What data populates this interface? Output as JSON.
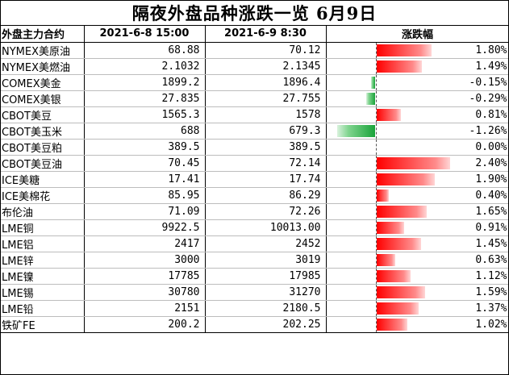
{
  "title": "隔夜外盘品种涨跌一览 6月9日",
  "headers": [
    "外盘主力合约",
    "2021-6-8 15:00",
    "2021-6-9 8:30",
    "涨跌幅"
  ],
  "colors": {
    "up": "#ff0000",
    "down": "#1aa33a"
  },
  "rows": [
    {
      "name": "NYMEX美原油",
      "prev": "68.88",
      "curr": "70.12",
      "change_text": "1.80%",
      "change": 1.8
    },
    {
      "name": "NYMEX美燃油",
      "prev": "2.1032",
      "curr": "2.1345",
      "change_text": "1.49%",
      "change": 1.49
    },
    {
      "name": "COMEX美金",
      "prev": "1899.2",
      "curr": "1896.4",
      "change_text": "-0.15%",
      "change": -0.15
    },
    {
      "name": "COMEX美银",
      "prev": "27.835",
      "curr": "27.755",
      "change_text": "-0.29%",
      "change": -0.29
    },
    {
      "name": "CBOT美豆",
      "prev": "1565.3",
      "curr": "1578",
      "change_text": "0.81%",
      "change": 0.81
    },
    {
      "name": "CBOT美玉米",
      "prev": "688",
      "curr": "679.3",
      "change_text": "-1.26%",
      "change": -1.26
    },
    {
      "name": "CBOT美豆粕",
      "prev": "389.5",
      "curr": "389.5",
      "change_text": "0.00%",
      "change": 0.0
    },
    {
      "name": "CBOT美豆油",
      "prev": "70.45",
      "curr": "72.14",
      "change_text": "2.40%",
      "change": 2.4
    },
    {
      "name": "ICE美糖",
      "prev": "17.41",
      "curr": "17.74",
      "change_text": "1.90%",
      "change": 1.9
    },
    {
      "name": "ICE美棉花",
      "prev": "85.95",
      "curr": "86.29",
      "change_text": "0.40%",
      "change": 0.4
    },
    {
      "name": "布伦油",
      "prev": "71.09",
      "curr": "72.26",
      "change_text": "1.65%",
      "change": 1.65
    },
    {
      "name": "LME铜",
      "prev": "9922.5",
      "curr": "10013.00",
      "change_text": "0.91%",
      "change": 0.91
    },
    {
      "name": "LME铝",
      "prev": "2417",
      "curr": "2452",
      "change_text": "1.45%",
      "change": 1.45
    },
    {
      "name": "LME锌",
      "prev": "3000",
      "curr": "3019",
      "change_text": "0.63%",
      "change": 0.63
    },
    {
      "name": "LME镍",
      "prev": "17785",
      "curr": "17985",
      "change_text": "1.12%",
      "change": 1.12
    },
    {
      "name": "LME锡",
      "prev": "30780",
      "curr": "31270",
      "change_text": "1.59%",
      "change": 1.59
    },
    {
      "name": "LME铅",
      "prev": "2151",
      "curr": "2180.5",
      "change_text": "1.37%",
      "change": 1.37
    },
    {
      "name": "铁矿FE",
      "prev": "200.2",
      "curr": "202.25",
      "change_text": "1.02%",
      "change": 1.02
    }
  ]
}
